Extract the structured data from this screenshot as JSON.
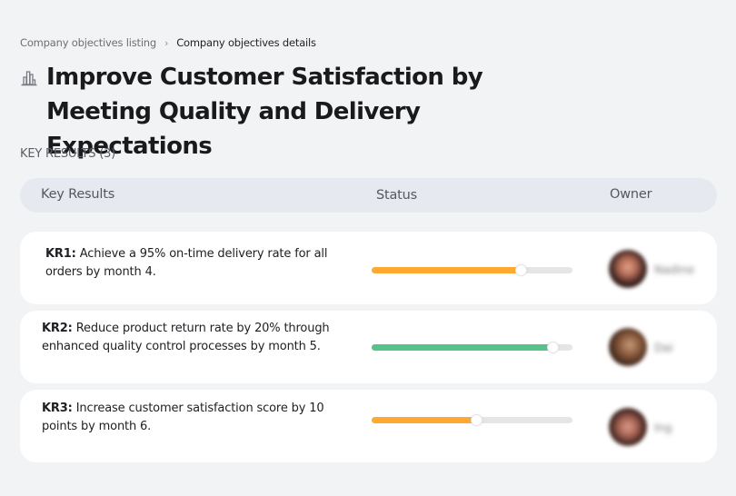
{
  "breadcrumb": {
    "items": [
      {
        "label": "Company objectives listing"
      },
      {
        "label": "Company objectives details"
      }
    ],
    "separator": "›"
  },
  "header": {
    "icon": "building-chart-icon",
    "title": "Improve Customer Satisfaction by Meeting Quality and Delivery Expectations"
  },
  "key_results_section": {
    "label": "KEY RESULTS (3)",
    "count": 3
  },
  "table": {
    "columns": [
      "Key Results",
      "Status",
      "Owner"
    ],
    "rows": [
      {
        "code": "KR1:",
        "text": " Achieve a 95% on-time delivery rate for all orders by month 4.",
        "progress": 74,
        "progress_color": "#ffa930",
        "owner_name": "Nadine"
      },
      {
        "code": "KR2:",
        "text": " Reduce product return rate by 20% through enhanced quality control processes by month 5.",
        "progress": 90,
        "progress_color": "#56c48a",
        "owner_name": "Dai"
      },
      {
        "code": "KR3:",
        "text": " Increase customer satisfaction score by 10 points by month 6.",
        "progress": 52,
        "progress_color": "#ffa930",
        "owner_name": "Ing"
      }
    ]
  },
  "colors": {
    "background": "#f2f3f5",
    "header_row": "#e6eaf0",
    "card": "#ffffff",
    "progress_track": "#e5e5e6",
    "warning": "#ffa930",
    "success": "#56c48a"
  }
}
